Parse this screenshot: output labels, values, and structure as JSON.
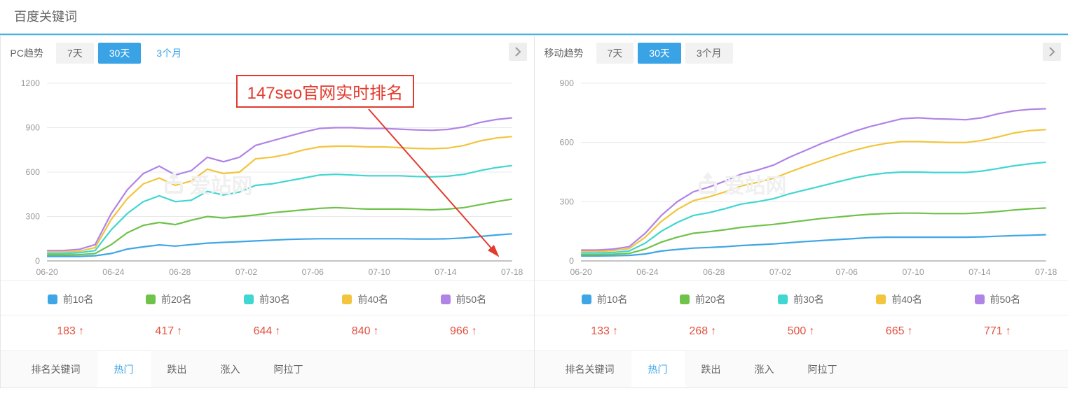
{
  "page_title": "百度关键词",
  "time_buttons": [
    "7天",
    "30天",
    "3个月"
  ],
  "time_active_index": 1,
  "annotation": {
    "text": "147seo官网实时排名",
    "color": "#e23b2e"
  },
  "watermark_text": "爱站网",
  "panels": [
    {
      "id": "pc",
      "title": "PC趋势",
      "chart": {
        "type": "line",
        "ylim": [
          0,
          1200
        ],
        "ytick_step": 300,
        "yticks": [
          0,
          300,
          600,
          900,
          1200
        ],
        "x_labels": [
          "06-20",
          "06-24",
          "06-28",
          "07-02",
          "07-06",
          "07-10",
          "07-14",
          "07-18"
        ],
        "n_points": 30,
        "grid_color": "#e9e9e9",
        "axis_color": "#888888",
        "label_color": "#999999",
        "label_fontsize": 12,
        "background_color": "#ffffff",
        "line_width": 2.2,
        "series": [
          {
            "name": "前10名",
            "color": "#3fa6e6",
            "values": [
              30,
              30,
              30,
              35,
              50,
              80,
              95,
              108,
              100,
              110,
              120,
              125,
              130,
              135,
              140,
              145,
              148,
              150,
              150,
              150,
              150,
              150,
              150,
              148,
              148,
              150,
              155,
              165,
              175,
              183
            ]
          },
          {
            "name": "前20名",
            "color": "#6fc24a",
            "values": [
              40,
              40,
              42,
              50,
              110,
              190,
              240,
              260,
              245,
              275,
              300,
              290,
              300,
              310,
              325,
              335,
              345,
              355,
              360,
              355,
              350,
              350,
              350,
              348,
              345,
              350,
              360,
              380,
              400,
              417
            ]
          },
          {
            "name": "前30名",
            "color": "#40d6d1",
            "values": [
              50,
              50,
              55,
              70,
              210,
              320,
              400,
              440,
              400,
              410,
              470,
              445,
              465,
              510,
              520,
              540,
              560,
              580,
              585,
              580,
              575,
              575,
              575,
              570,
              568,
              572,
              585,
              610,
              630,
              644
            ]
          },
          {
            "name": "前40名",
            "color": "#f2c53d",
            "values": [
              60,
              60,
              65,
              90,
              280,
              420,
              520,
              560,
              510,
              540,
              620,
              590,
              600,
              690,
              700,
              720,
              750,
              770,
              775,
              775,
              770,
              770,
              765,
              760,
              758,
              762,
              780,
              810,
              830,
              840
            ]
          },
          {
            "name": "前50名",
            "color": "#b083e6",
            "values": [
              70,
              70,
              78,
              110,
              320,
              480,
              590,
              640,
              580,
              610,
              700,
              670,
              700,
              780,
              810,
              840,
              870,
              895,
              900,
              900,
              895,
              895,
              890,
              885,
              882,
              888,
              905,
              935,
              955,
              966
            ]
          }
        ]
      },
      "legend": [
        {
          "label": "前10名",
          "color": "#3fa6e6"
        },
        {
          "label": "前20名",
          "color": "#6fc24a"
        },
        {
          "label": "前30名",
          "color": "#40d6d1"
        },
        {
          "label": "前40名",
          "color": "#f2c53d"
        },
        {
          "label": "前50名",
          "color": "#b083e6"
        }
      ],
      "stats": [
        {
          "value": "183",
          "dir": "up"
        },
        {
          "value": "417",
          "dir": "up"
        },
        {
          "value": "644",
          "dir": "up"
        },
        {
          "value": "840",
          "dir": "up"
        },
        {
          "value": "966",
          "dir": "up"
        }
      ],
      "tabs": [
        "排名关键词",
        "热门",
        "跌出",
        "涨入",
        "阿拉丁"
      ],
      "tab_active_index": 1,
      "has_annotation": true,
      "blue_text_btn_index": 2
    },
    {
      "id": "mobile",
      "title": "移动趋势",
      "chart": {
        "type": "line",
        "ylim": [
          0,
          900
        ],
        "ytick_step": 300,
        "yticks": [
          0,
          300,
          600,
          900
        ],
        "x_labels": [
          "06-20",
          "06-24",
          "06-28",
          "07-02",
          "07-06",
          "07-10",
          "07-14",
          "07-18"
        ],
        "n_points": 30,
        "grid_color": "#e9e9e9",
        "axis_color": "#888888",
        "label_color": "#999999",
        "label_fontsize": 12,
        "background_color": "#ffffff",
        "line_width": 2.2,
        "series": [
          {
            "name": "前10名",
            "color": "#3fa6e6",
            "values": [
              25,
              25,
              26,
              28,
              35,
              50,
              58,
              65,
              68,
              72,
              78,
              82,
              86,
              92,
              98,
              103,
              108,
              113,
              118,
              120,
              120,
              120,
              120,
              120,
              120,
              122,
              125,
              128,
              130,
              133
            ]
          },
          {
            "name": "前20名",
            "color": "#6fc24a",
            "values": [
              32,
              32,
              34,
              38,
              60,
              95,
              120,
              140,
              148,
              158,
              170,
              178,
              185,
              195,
              205,
              215,
              222,
              230,
              236,
              240,
              242,
              242,
              240,
              240,
              240,
              244,
              250,
              258,
              264,
              268
            ]
          },
          {
            "name": "前30名",
            "color": "#40d6d1",
            "values": [
              40,
              40,
              43,
              50,
              90,
              150,
              195,
              230,
              245,
              265,
              288,
              300,
              315,
              340,
              360,
              380,
              400,
              420,
              435,
              445,
              450,
              450,
              448,
              448,
              448,
              455,
              468,
              482,
              492,
              500
            ]
          },
          {
            "name": "前40名",
            "color": "#f2c53d",
            "values": [
              48,
              48,
              52,
              62,
              120,
              200,
              260,
              305,
              325,
              350,
              380,
              398,
              418,
              450,
              480,
              508,
              535,
              560,
              580,
              595,
              605,
              605,
              602,
              600,
              600,
              610,
              628,
              648,
              660,
              665
            ]
          },
          {
            "name": "前50名",
            "color": "#b083e6",
            "values": [
              55,
              55,
              60,
              72,
              140,
              230,
              300,
              350,
              375,
              405,
              440,
              460,
              485,
              525,
              560,
              595,
              625,
              655,
              680,
              700,
              720,
              725,
              720,
              718,
              715,
              725,
              745,
              760,
              768,
              771
            ]
          }
        ]
      },
      "legend": [
        {
          "label": "前10名",
          "color": "#3fa6e6"
        },
        {
          "label": "前20名",
          "color": "#6fc24a"
        },
        {
          "label": "前30名",
          "color": "#40d6d1"
        },
        {
          "label": "前40名",
          "color": "#f2c53d"
        },
        {
          "label": "前50名",
          "color": "#b083e6"
        }
      ],
      "stats": [
        {
          "value": "133",
          "dir": "up"
        },
        {
          "value": "268",
          "dir": "up"
        },
        {
          "value": "500",
          "dir": "up"
        },
        {
          "value": "665",
          "dir": "up"
        },
        {
          "value": "771",
          "dir": "up"
        }
      ],
      "tabs": [
        "排名关键词",
        "热门",
        "跌出",
        "涨入",
        "阿拉丁"
      ],
      "tab_active_index": 1,
      "has_annotation": false,
      "blue_text_btn_index": -1
    }
  ],
  "stat_color": "#e25141"
}
